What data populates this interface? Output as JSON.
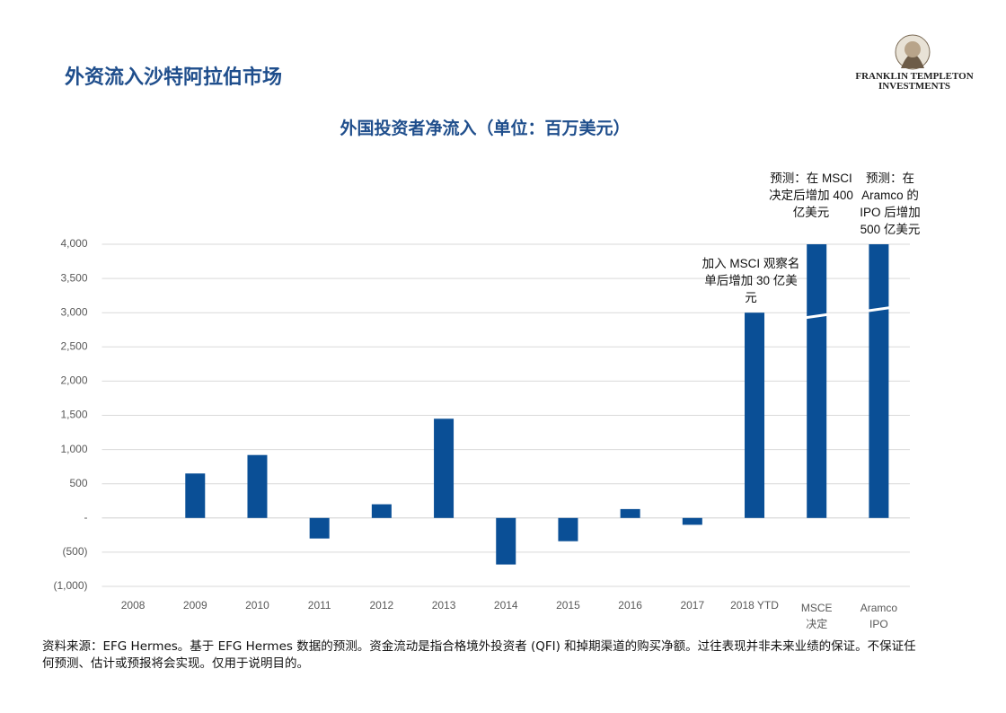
{
  "page_title": "外资流入沙特阿拉伯市场",
  "logo": [
    "FRANKLIN TEMPLETON",
    "INVESTMENTS"
  ],
  "chart_data": {
    "type": "bar",
    "title": "外国投资者净流入（单位：百万美元）",
    "categories": [
      "2008",
      "2009",
      "2010",
      "2011",
      "2012",
      "2013",
      "2014",
      "2015",
      "2016",
      "2017",
      "2018 YTD",
      "MSCE 决定",
      "Aramco IPO"
    ],
    "values": [
      0,
      650,
      920,
      -300,
      200,
      1450,
      -680,
      -340,
      130,
      -100,
      3000,
      4000,
      4000
    ],
    "break_values": [
      null,
      null,
      null,
      null,
      null,
      null,
      null,
      null,
      null,
      null,
      null,
      2950,
      3050
    ],
    "color": "#0a4f96",
    "ylim": [
      -1000,
      4000
    ],
    "yticks": [
      {
        "value": -1000,
        "label": "(1,000)"
      },
      {
        "value": -500,
        "label": "(500)"
      },
      {
        "value": 0,
        "label": "-"
      },
      {
        "value": 500,
        "label": "500"
      },
      {
        "value": 1000,
        "label": "1,000"
      },
      {
        "value": 1500,
        "label": "1,500"
      },
      {
        "value": 2000,
        "label": "2,000"
      },
      {
        "value": 2500,
        "label": "2,500"
      },
      {
        "value": 3000,
        "label": "3,000"
      },
      {
        "value": 3500,
        "label": "3,500"
      },
      {
        "value": 4000,
        "label": "4,000"
      }
    ],
    "grid": true,
    "annotations": [
      "加入 MSCI 观察名单后增加 30 亿美元",
      "预测：在 MSCI 决定后增加 400 亿美元",
      "预测：在 Aramco 的 IPO 后增加 500 亿美元"
    ]
  },
  "footnote": "资料来源：EFG Hermes。基于 EFG Hermes 数据的预测。资金流动是指合格境外投资者 (QFI) 和掉期渠道的购买净额。过往表现并非未来业绩的保证。不保证任何预测、估计或预报将会实现。仅用于说明目的。"
}
